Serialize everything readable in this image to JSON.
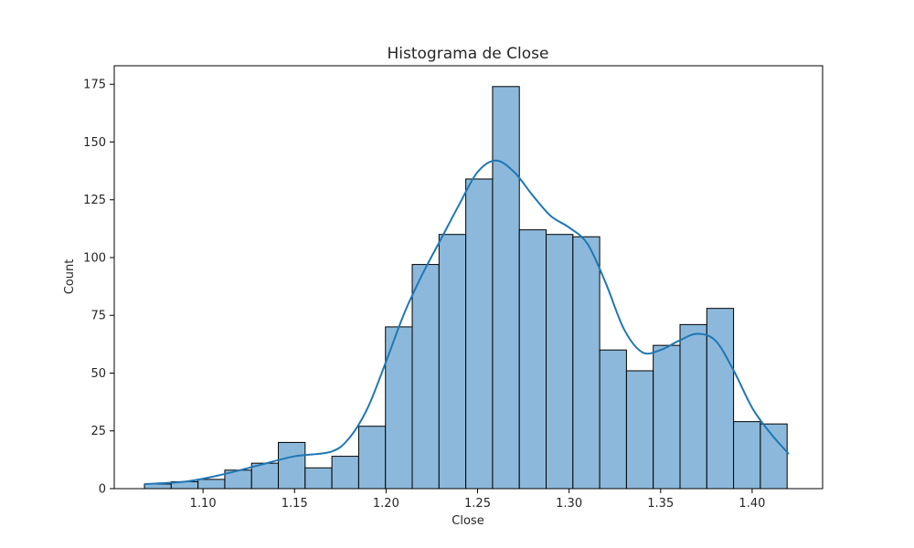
{
  "chart_data": {
    "type": "bar",
    "title": "Histograma de Close",
    "xlabel": "Close",
    "ylabel": "Count",
    "xlim": [
      1.0515,
      1.4385
    ],
    "ylim": [
      0,
      183
    ],
    "xticks": [
      1.1,
      1.15,
      1.2,
      1.25,
      1.3,
      1.35,
      1.4
    ],
    "xtick_labels": [
      "1.10",
      "1.15",
      "1.20",
      "1.25",
      "1.30",
      "1.35",
      "1.40"
    ],
    "yticks": [
      0,
      25,
      50,
      75,
      100,
      125,
      150,
      175
    ],
    "ytick_labels": [
      "0",
      "25",
      "50",
      "75",
      "100",
      "125",
      "150",
      "175"
    ],
    "bins": {
      "start": 1.068,
      "width": 0.01463,
      "counts": [
        2,
        3,
        4,
        8,
        11,
        20,
        9,
        14,
        27,
        70,
        97,
        110,
        134,
        174,
        112,
        110,
        109,
        60,
        51,
        62,
        71,
        78,
        29,
        28
      ]
    },
    "kde": {
      "x": [
        1.068,
        1.09,
        1.11,
        1.13,
        1.15,
        1.17,
        1.18,
        1.19,
        1.2,
        1.21,
        1.22,
        1.23,
        1.24,
        1.25,
        1.26,
        1.27,
        1.28,
        1.29,
        1.3,
        1.31,
        1.32,
        1.33,
        1.34,
        1.35,
        1.36,
        1.37,
        1.38,
        1.39,
        1.4,
        1.41,
        1.42
      ],
      "y": [
        2,
        3,
        6,
        10,
        14,
        16,
        22,
        35,
        55,
        76,
        93,
        108,
        123,
        137,
        142,
        137,
        127,
        118,
        113,
        106,
        89,
        69,
        59,
        60,
        64,
        67,
        64,
        51,
        35,
        24,
        15
      ]
    },
    "colors": {
      "bar_fill": "#8cb9db",
      "bar_edge": "#000000",
      "kde_line": "#1f77b4",
      "axes": "#000000",
      "text": "#262626"
    },
    "grid": false,
    "legend": "none"
  }
}
